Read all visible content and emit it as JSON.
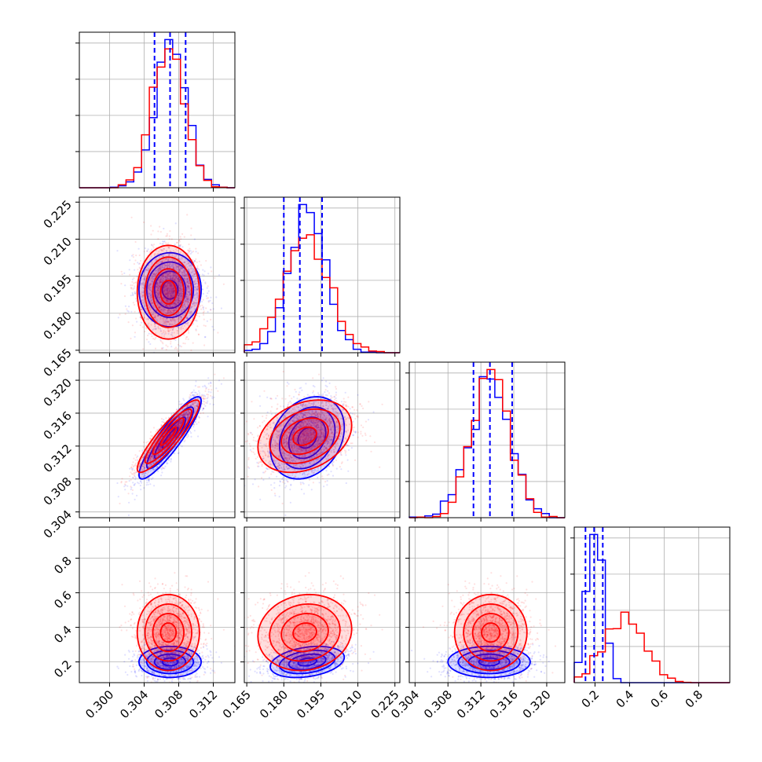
{
  "chart_data": {
    "type": "scatter",
    "plot_kind": "corner plot (pairwise posterior samples with 1D histograms and 2D density contours)",
    "parameters": [
      {
        "ticks": [
          "0.300",
          "0.304",
          "0.308",
          "0.312"
        ],
        "range": [
          0.2965,
          0.3145
        ]
      },
      {
        "ticks": [
          "0.165",
          "0.180",
          "0.195",
          "0.210",
          "0.225"
        ],
        "range": [
          0.164,
          0.227
        ]
      },
      {
        "ticks": [
          "0.304",
          "0.308",
          "0.312",
          "0.316",
          "0.320"
        ],
        "range": [
          0.3033,
          0.3222
        ]
      },
      {
        "ticks": [
          "0.2",
          "0.4",
          "0.6",
          "0.8"
        ],
        "range": [
          0.08,
          0.98
        ]
      }
    ],
    "series": [
      {
        "color": "#0000ff",
        "mean": [
          0.307,
          0.1895,
          0.313,
          0.2
        ],
        "sd": [
          0.0018,
          0.0075,
          0.0025,
          0.045
        ],
        "correlation": [
          [
            1,
            0,
            0.9,
            0
          ],
          [
            0,
            1,
            0.25,
            0.3
          ],
          [
            0.9,
            0.25,
            1,
            0
          ],
          [
            0,
            0.3,
            0,
            1
          ]
        ],
        "quantile_lines": [
          [
            0.3052,
            0.307,
            0.3088
          ],
          [
            0.18,
            0.1865,
            0.1955
          ],
          [
            0.3111,
            0.3131,
            0.3158
          ],
          [
            0.145,
            0.195,
            0.245
          ]
        ]
      },
      {
        "color": "#ff0000",
        "mean": [
          0.3068,
          0.1885,
          0.3132,
          0.37
        ],
        "sd": [
          0.0018,
          0.0095,
          0.0022,
          0.11
        ],
        "correlation": [
          [
            1,
            0,
            0.9,
            0
          ],
          [
            0,
            1,
            0.3,
            0.1
          ],
          [
            0.9,
            0.3,
            1,
            0
          ],
          [
            0,
            0.1,
            0,
            1
          ]
        ]
      }
    ],
    "grid": true,
    "legend": "none"
  }
}
